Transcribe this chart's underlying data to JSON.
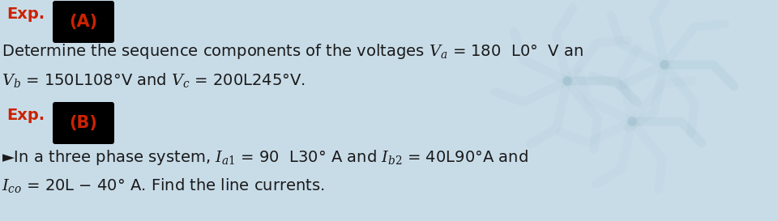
{
  "bg_color": "#c8dce8",
  "text_color": "#1a1a1a",
  "red_color": "#cc2200",
  "label_A": "Exp.",
  "box_label_A": "(A)",
  "label_B": "Exp.",
  "box_label_B": "(B)",
  "line1_A": "Determine the sequence components of the voltages $V_a$ = 180  L0°  V an",
  "line2_A": "$V_b$ = 150L108°V and $V_c$ = 200L245°V.",
  "line1_B": "►In a three phase system, $I_{a1}$ = 90  L30° A and $I_{b2}$ = 40L90°A and",
  "line2_B": "$I_{co}$ = 20L − 40° A. Find the line currents.",
  "figsize": [
    9.6,
    2.73
  ],
  "dpi": 100
}
